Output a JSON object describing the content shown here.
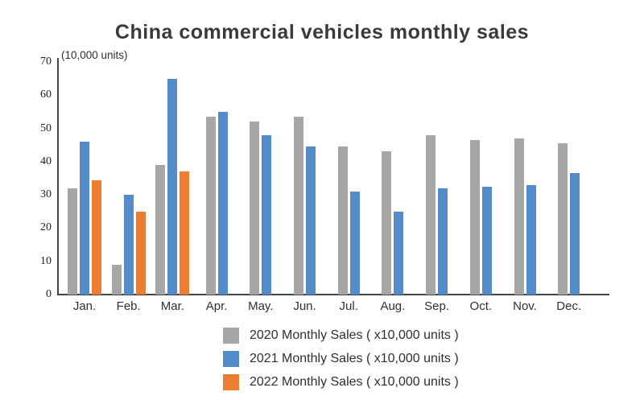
{
  "chart_data": {
    "type": "bar",
    "title": "China commercial vehicles monthly sales",
    "unit_label": "(10,000 units)",
    "categories": [
      "Jan.",
      "Feb.",
      "Mar.",
      "Apr.",
      "May.",
      "Jun.",
      "Jul.",
      "Aug.",
      "Sep.",
      "Oct.",
      "Nov.",
      "Dec."
    ],
    "series": [
      {
        "name": "2020 Monthly Sales ( x10,000 units )",
        "color": "#a6a6a6",
        "values": [
          32,
          9,
          39,
          53.5,
          52,
          53.5,
          44.5,
          43,
          48,
          46.5,
          47,
          45.5
        ]
      },
      {
        "name": "2021 Monthly Sales ( x10,000 units )",
        "color": "#538cc9",
        "values": [
          46,
          30,
          65,
          55,
          48,
          44.5,
          31,
          25,
          32,
          32.5,
          33,
          36.5
        ]
      },
      {
        "name": "2022 Monthly Sales ( x10,000 units )",
        "color": "#ed7d31",
        "values": [
          34.5,
          25,
          37,
          null,
          null,
          null,
          null,
          null,
          null,
          null,
          null,
          null
        ]
      }
    ],
    "ylim": [
      0,
      70
    ],
    "yticks": [
      0,
      10,
      20,
      30,
      40,
      50,
      60,
      70
    ],
    "grid": false,
    "legend_position": "bottom",
    "axis_color": "#444444"
  }
}
